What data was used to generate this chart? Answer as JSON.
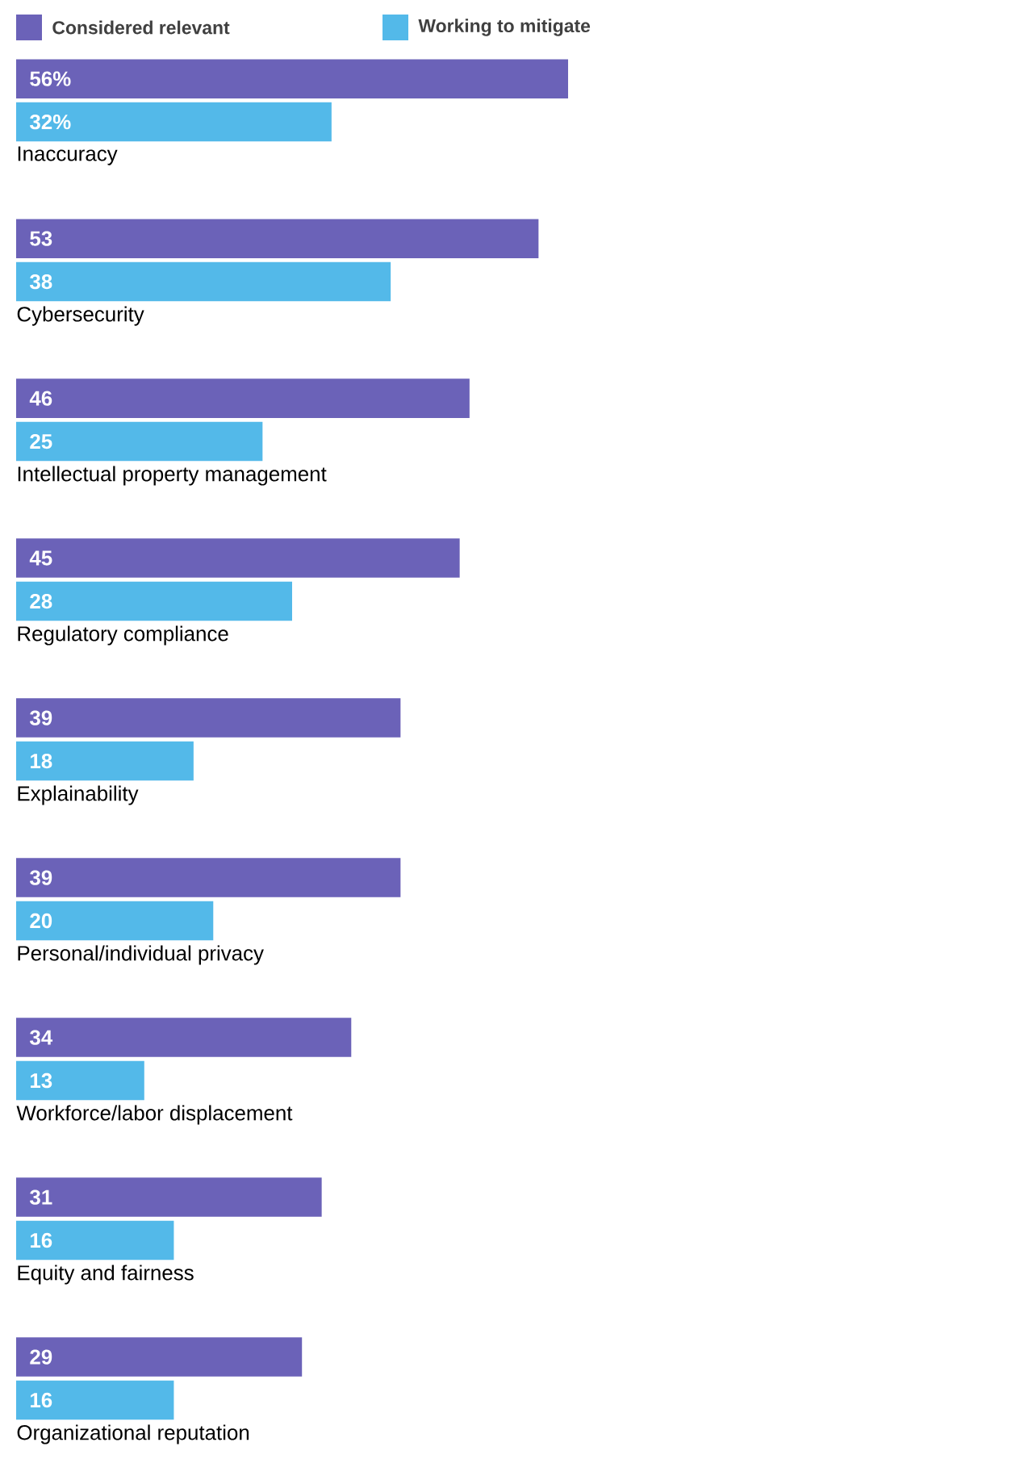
{
  "chart_data": {
    "type": "bar",
    "orientation": "horizontal",
    "legend": "top left",
    "tick_labels": "y",
    "categories": [
      "Inaccuracy",
      "Cybersecurity",
      "Intellectual property management",
      "Regulatory compliance",
      "Explainability",
      "Personal/individual privacy",
      "Workforce/labor displacement",
      "Equity and fairness",
      "Organizational reputation"
    ],
    "series": [
      {
        "name": "Considered relevant",
        "color": "#6b62b8",
        "values": [
          56,
          53,
          46,
          45,
          39,
          39,
          34,
          31,
          29
        ],
        "value_labels": [
          "56%",
          "53",
          "46",
          "45",
          "39",
          "39",
          "34",
          "31",
          "29"
        ]
      },
      {
        "name": "Working to mitigate",
        "color": "#53b9e9",
        "values": [
          32,
          38,
          25,
          28,
          18,
          20,
          13,
          16,
          16
        ],
        "value_labels": [
          "32%",
          "38",
          "25",
          "28",
          "18",
          "20",
          "13",
          "16",
          "16"
        ]
      }
    ]
  }
}
